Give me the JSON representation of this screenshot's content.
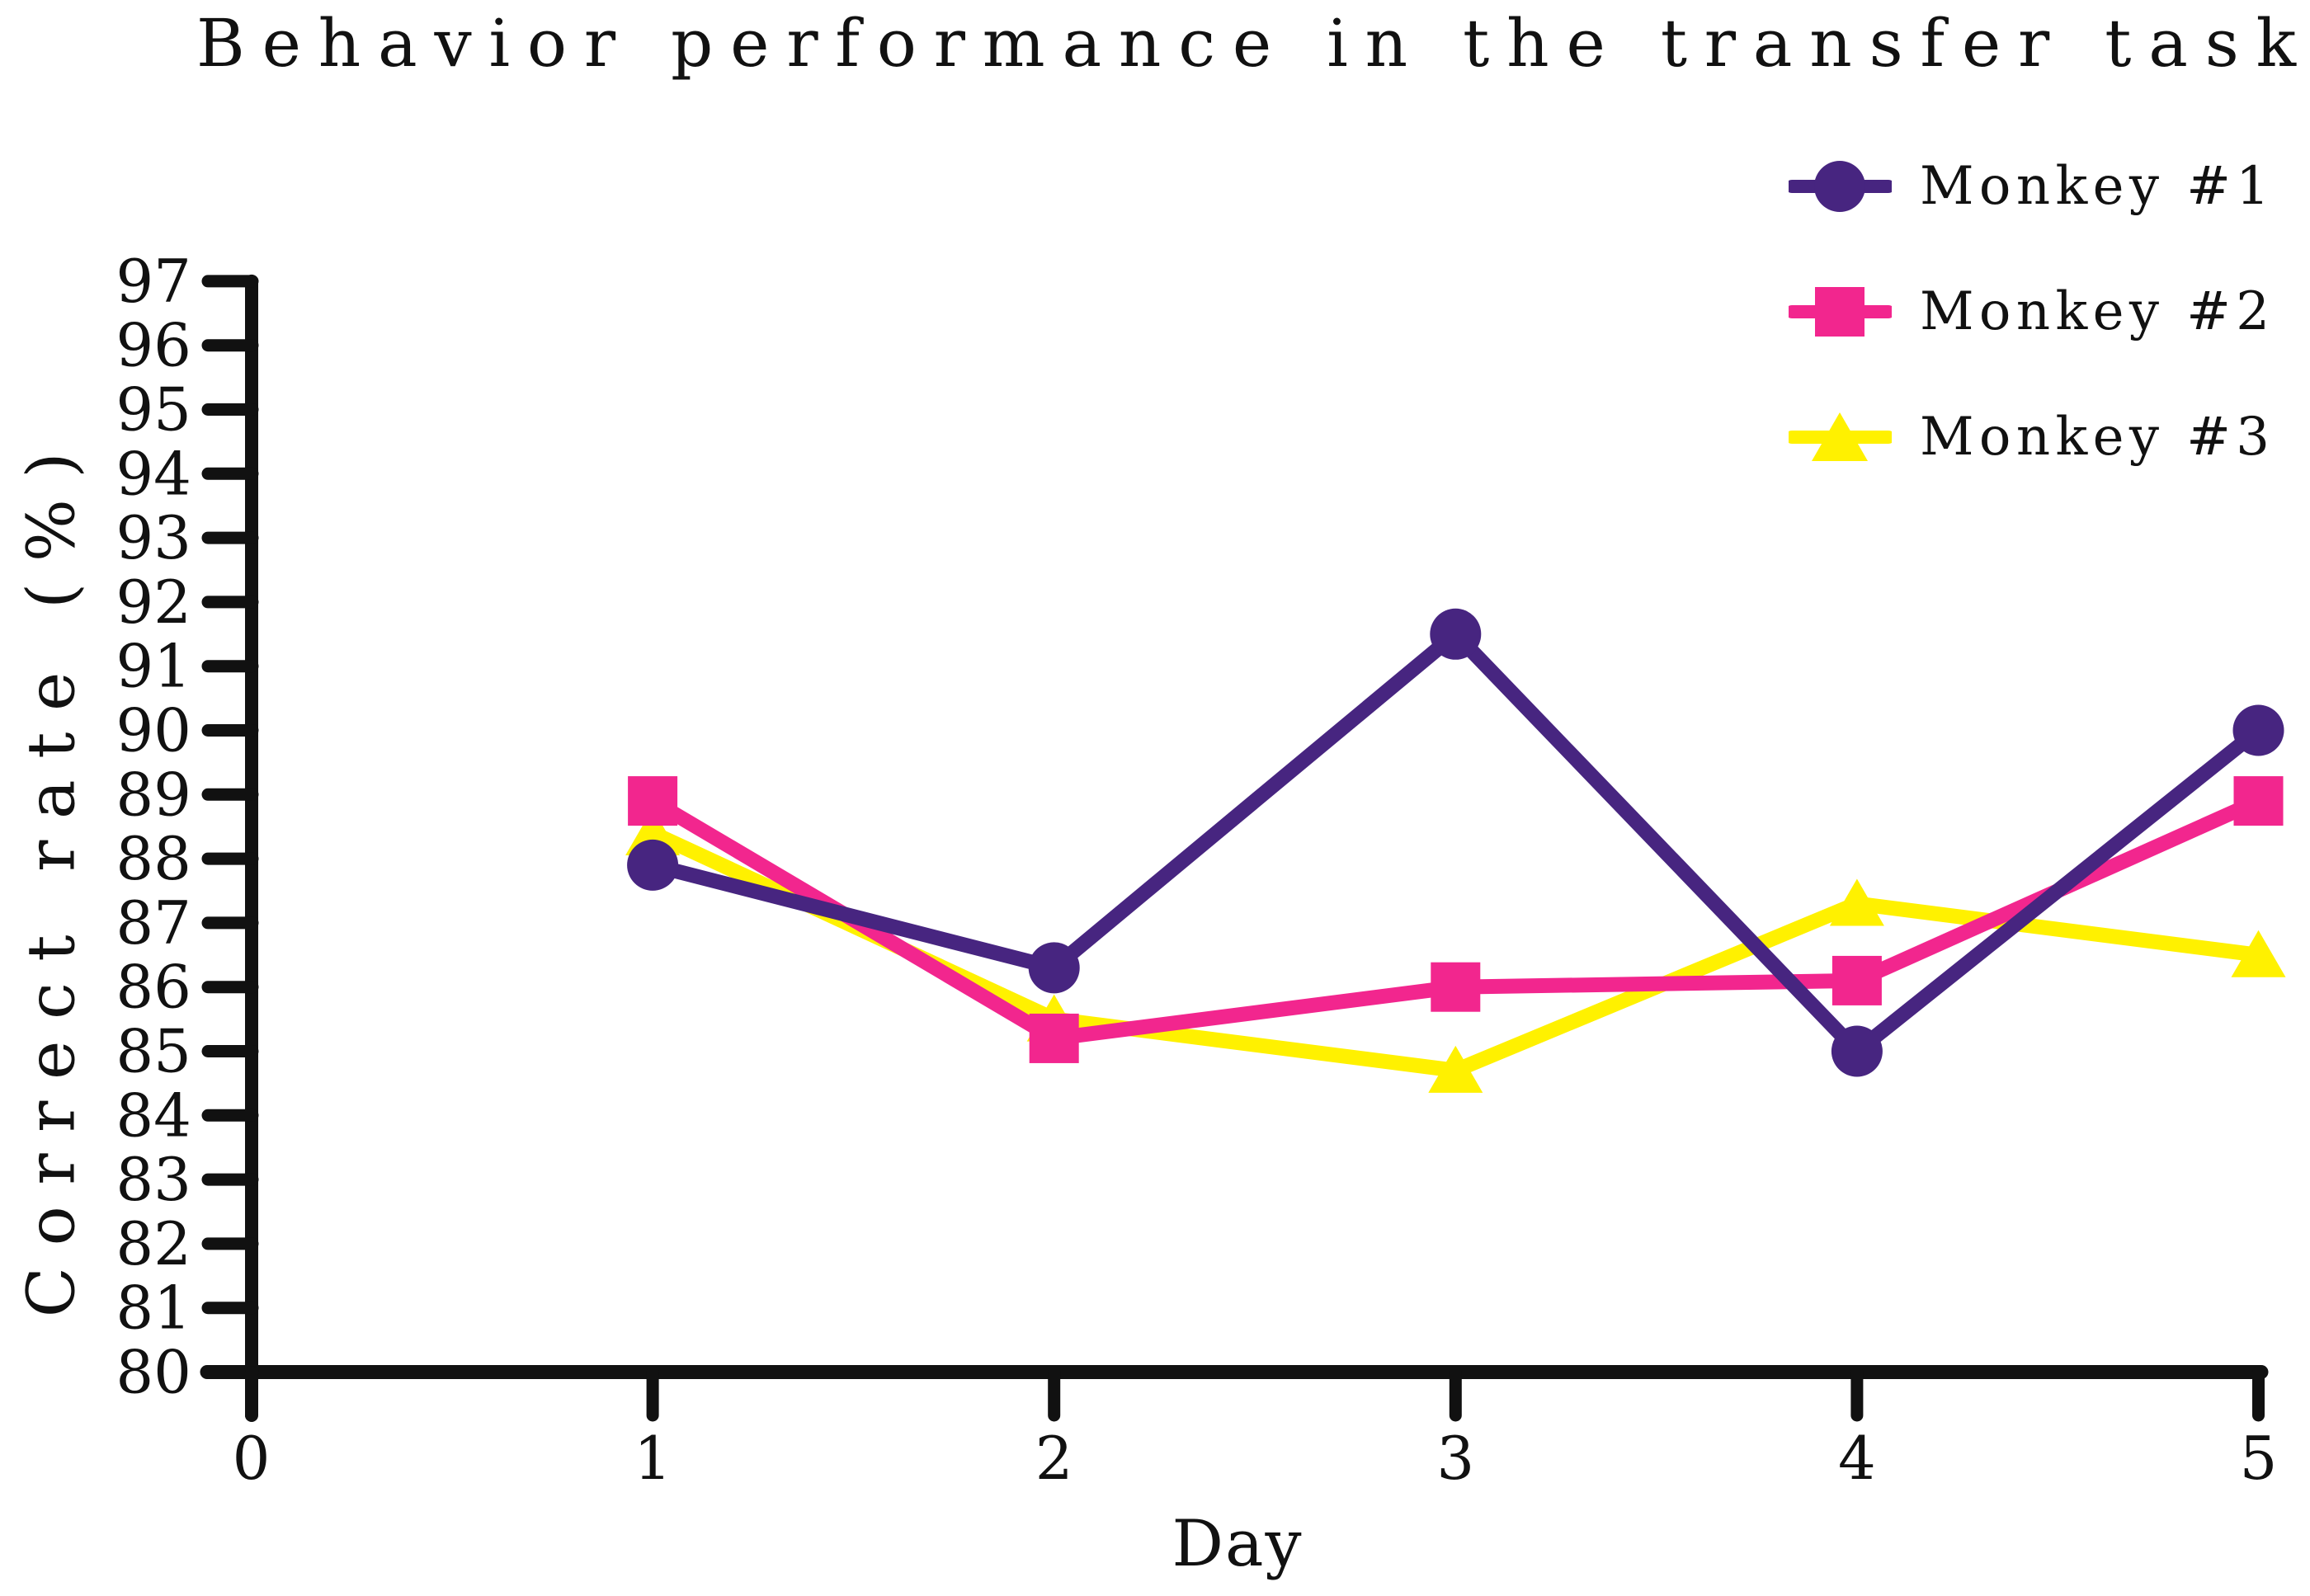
{
  "title": "Behavior performance in the transfer task",
  "axes": {
    "x": {
      "label": "Day",
      "min": 0,
      "max": 5,
      "tick_labels": [
        "0",
        "1",
        "2",
        "3",
        "4",
        "5"
      ]
    },
    "y": {
      "label": "Correct rate (%)",
      "min": 80,
      "max": 97,
      "step": 1,
      "tick_labels": [
        "80",
        "81",
        "82",
        "83",
        "84",
        "85",
        "86",
        "87",
        "88",
        "89",
        "90",
        "91",
        "92",
        "93",
        "94",
        "95",
        "96",
        "97"
      ]
    }
  },
  "legend": [
    {
      "label": "Monkey #1",
      "marker": "circle",
      "color": "#472580"
    },
    {
      "label": "Monkey #2",
      "marker": "square",
      "color": "#F2268E"
    },
    {
      "label": "Monkey #3",
      "marker": "triangle",
      "color": "#FFF100"
    }
  ],
  "chart_data": {
    "type": "line",
    "title": "Behavior performance in the transfer task",
    "xlabel": "Day",
    "ylabel": "Correct rate (%)",
    "x": [
      1,
      2,
      3,
      4,
      5
    ],
    "series": [
      {
        "name": "Monkey #1",
        "marker": "circle",
        "color": "#472580",
        "values": [
          87.9,
          86.3,
          91.5,
          85.0,
          90.0
        ]
      },
      {
        "name": "Monkey #2",
        "marker": "square",
        "color": "#F2268E",
        "values": [
          88.9,
          85.2,
          86.0,
          86.1,
          88.9
        ]
      },
      {
        "name": "Monkey #3",
        "marker": "triangle",
        "color": "#FFF100",
        "values": [
          88.4,
          85.5,
          84.7,
          87.3,
          86.5
        ]
      }
    ],
    "xlim": [
      0,
      5
    ],
    "ylim": [
      80,
      97
    ],
    "grid": false,
    "legend_position": "top-right",
    "axis_color": "#111111"
  }
}
